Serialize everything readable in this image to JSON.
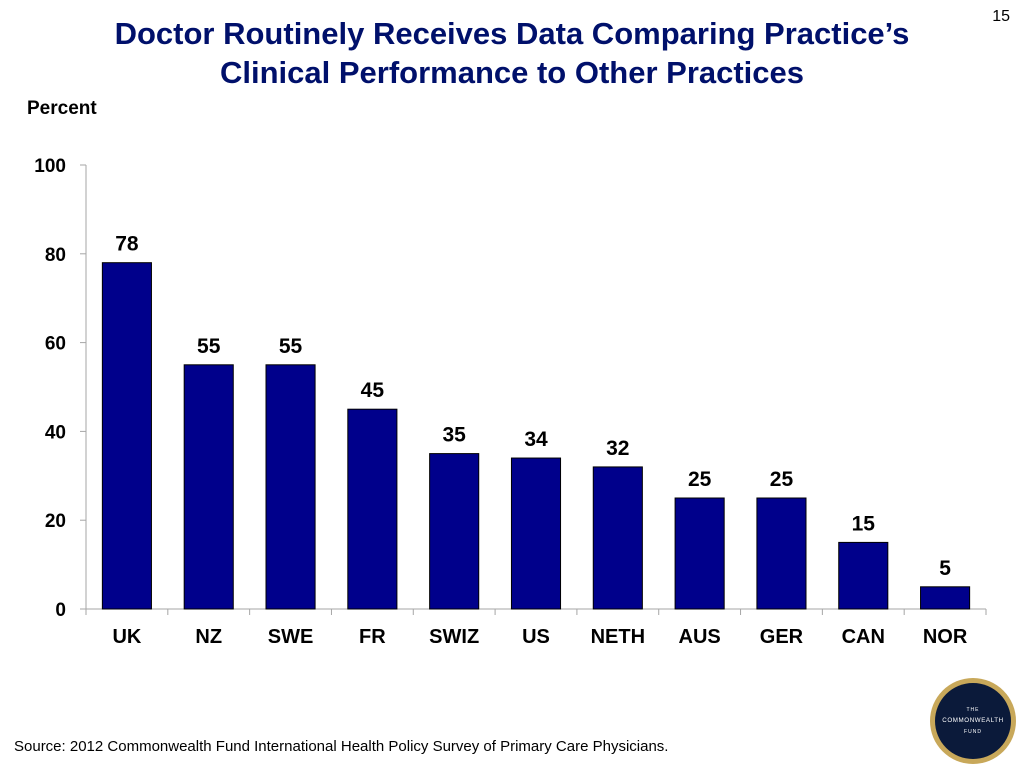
{
  "slide": {
    "number": "15",
    "title_line1": "Doctor Routinely Receives Data Comparing Practice’s",
    "title_line2": "Clinical Performance to Other Practices",
    "source": "Source: 2012 Commonwealth Fund International Health Policy Survey of Primary Care Physicians.",
    "logo_text": [
      "THE",
      "COMMONWEALTH",
      "FUND"
    ]
  },
  "colors": {
    "bar": "#00008b",
    "title": "#00106b",
    "logo_bg": "#0b1a3a",
    "logo_ring": "#c8a85a"
  },
  "chart_data": {
    "type": "bar",
    "title": "Doctor Routinely Receives Data Comparing Practice’s Clinical Performance to Other Practices",
    "ylabel": "Percent",
    "xlabel": "",
    "categories": [
      "UK",
      "NZ",
      "SWE",
      "FR",
      "SWIZ",
      "US",
      "NETH",
      "AUS",
      "GER",
      "CAN",
      "NOR"
    ],
    "values": [
      78,
      55,
      55,
      45,
      35,
      34,
      32,
      25,
      25,
      15,
      5
    ],
    "ylim": [
      0,
      100
    ],
    "yticks": [
      0,
      20,
      40,
      60,
      80,
      100
    ],
    "grid": false,
    "legend": "none",
    "data_labels": true
  }
}
